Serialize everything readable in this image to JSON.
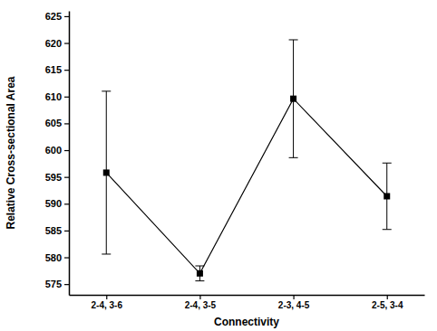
{
  "chart_data": {
    "type": "line",
    "x_label": "Connectivity",
    "y_label": "Relative Cross-sectional Area",
    "categories": [
      "2-4, 3-6",
      "2-4, 3-5",
      "2-3, 4-5",
      "2-5, 3-4"
    ],
    "values": [
      595.8,
      577.0,
      609.6,
      591.4
    ],
    "errors": [
      15.2,
      1.4,
      11.0,
      6.2
    ],
    "color": "#000000",
    "marker": "square",
    "line_style": "solid",
    "ylim": [
      573,
      626
    ],
    "yticks": [
      575,
      580,
      585,
      590,
      595,
      600,
      605,
      610,
      615,
      620,
      625
    ]
  }
}
